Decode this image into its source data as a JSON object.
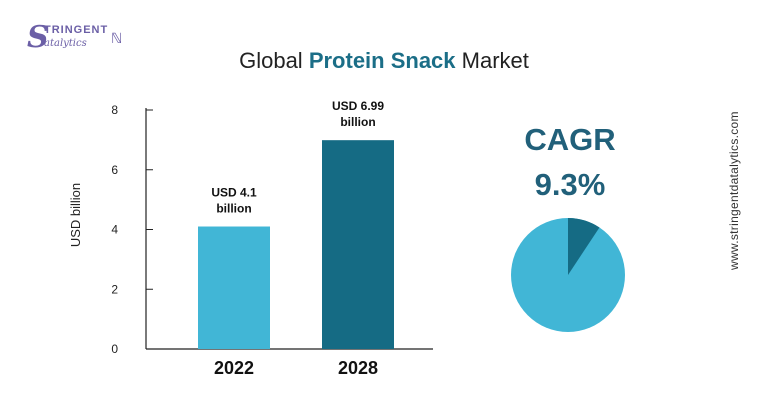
{
  "logo": {
    "top": "TRINGENT",
    "bottom": "atalytics",
    "initial": "S"
  },
  "title": {
    "prefix": "Global ",
    "highlight": "Protein Snack",
    "suffix": " Market"
  },
  "cagr": {
    "label": "CAGR",
    "value": "9.3%",
    "fraction": 0.093
  },
  "website": "www.stringentdatalytics.com",
  "colors": {
    "bar_2022": "#41b6d6",
    "bar_2028": "#156b84",
    "pie_main": "#41b6d6",
    "pie_slice": "#156b84",
    "accent": "#21607a"
  },
  "chart_data": {
    "type": "bar",
    "categories": [
      "2022",
      "2028"
    ],
    "values": [
      4.1,
      6.99
    ],
    "data_labels": [
      [
        "USD 4.1",
        "billion"
      ],
      [
        "USD 6.99",
        "billion"
      ]
    ],
    "title": "Global Protein Snack Market",
    "xlabel": "",
    "ylabel": "USD billion",
    "ylim": [
      0,
      8
    ],
    "yticks": [
      0,
      2,
      4,
      6,
      8
    ],
    "grid": false
  }
}
